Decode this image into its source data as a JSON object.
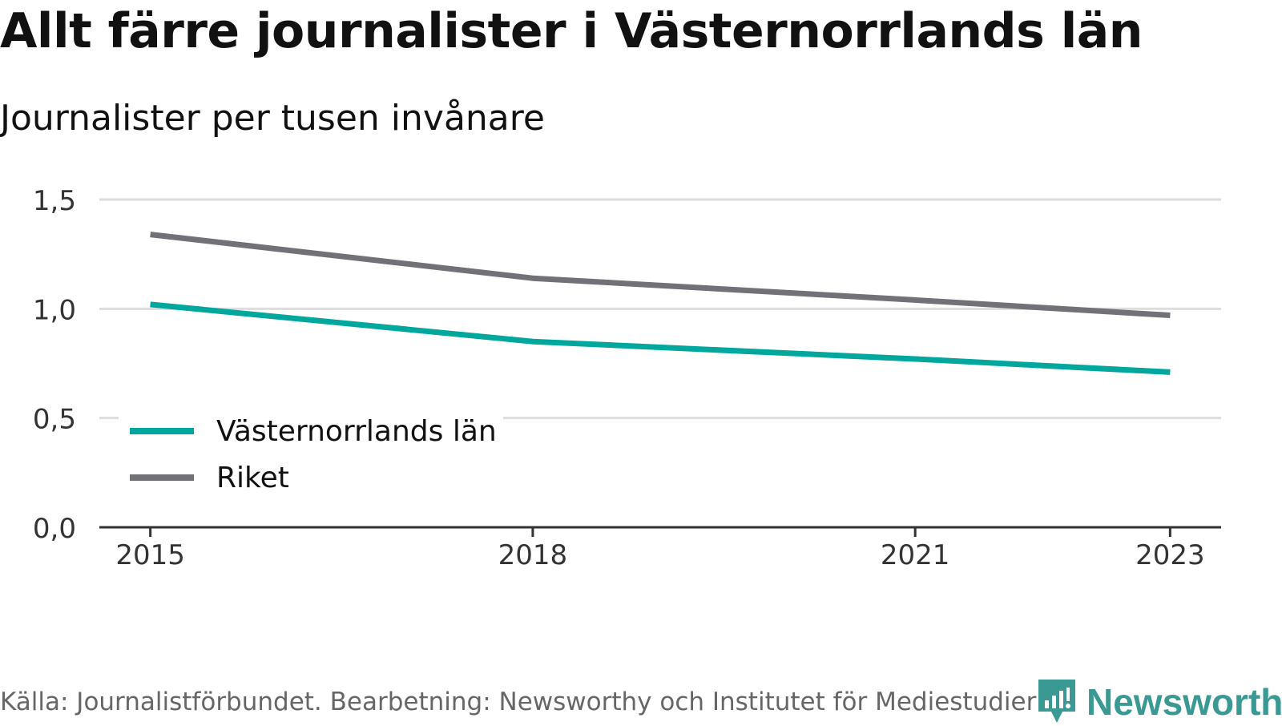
{
  "title": "Allt färre journalister i Västernorrlands län",
  "subtitle": "Journalister per tusen invånare",
  "footer": {
    "source": "Källa: Journalistförbundet. Bearbetning: Newsworthy och Institutet för Mediestudier",
    "brand": "Newsworthy"
  },
  "chart_data": {
    "type": "line",
    "title": "Allt färre journalister i Västernorrlands län",
    "subtitle": "Journalister per tusen invånare",
    "xlabel": "",
    "ylabel": "",
    "x": [
      2015,
      2018,
      2021,
      2023
    ],
    "x_ticks": [
      "2015",
      "2018",
      "2021",
      "2023"
    ],
    "y_ticks": [
      "0,0",
      "0,5",
      "1,0",
      "1,5"
    ],
    "ylim": [
      0,
      1.5
    ],
    "xlim": [
      2014.6,
      2023.4
    ],
    "grid": true,
    "legend_position": "bottom-left",
    "series": [
      {
        "name": "Västernorrlands län",
        "color": "#00a79d",
        "values": [
          1.02,
          0.85,
          0.77,
          0.71
        ]
      },
      {
        "name": "Riket",
        "color": "#727178",
        "values": [
          1.34,
          1.14,
          1.04,
          0.97
        ]
      }
    ]
  },
  "colors": {
    "grid": "#dddddd",
    "axis": "#333333",
    "tick_text": "#333333",
    "brand": "#3a9a93"
  }
}
